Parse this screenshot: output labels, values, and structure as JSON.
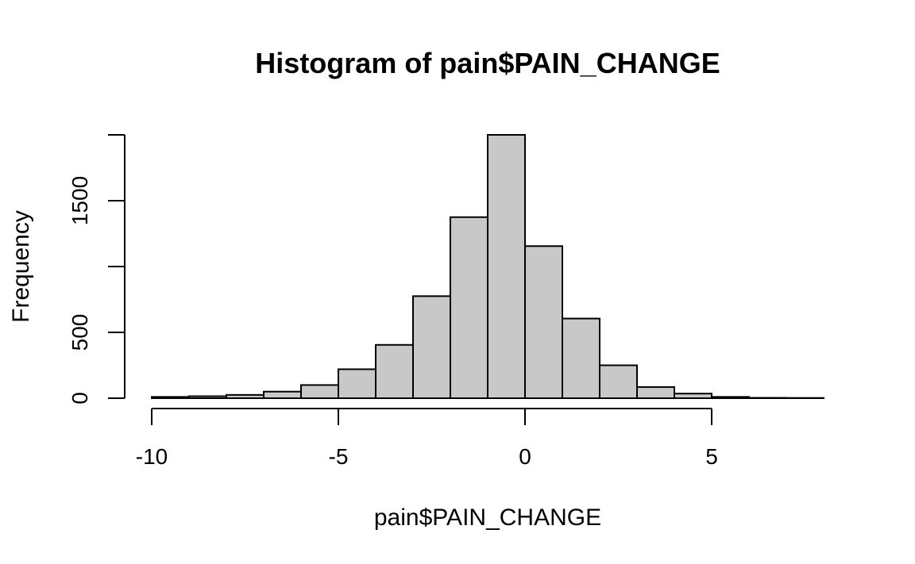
{
  "chart_data": {
    "type": "bar",
    "title": "Histogram of pain$PAIN_CHANGE",
    "xlabel": "pain$PAIN_CHANGE",
    "ylabel": "Frequency",
    "bin_edges": [
      -10,
      -9,
      -8,
      -7,
      -6,
      -5,
      -4,
      -3,
      -2,
      -1,
      0,
      1,
      2,
      3,
      4,
      5,
      6,
      7,
      8
    ],
    "values": [
      10,
      15,
      25,
      50,
      100,
      220,
      405,
      775,
      1375,
      2000,
      1155,
      605,
      250,
      85,
      35,
      10,
      3,
      2
    ],
    "xlim": [
      -10,
      8
    ],
    "ylim": [
      0,
      2000
    ],
    "xticks": [
      -10,
      -5,
      0,
      5
    ],
    "yticks": [
      0,
      500,
      1000,
      1500,
      2000
    ],
    "ytick_labels": [
      "0",
      "500",
      "",
      "1500",
      ""
    ],
    "grid": false,
    "bar_fill": "#c8c8c8",
    "bar_stroke": "#000000"
  }
}
